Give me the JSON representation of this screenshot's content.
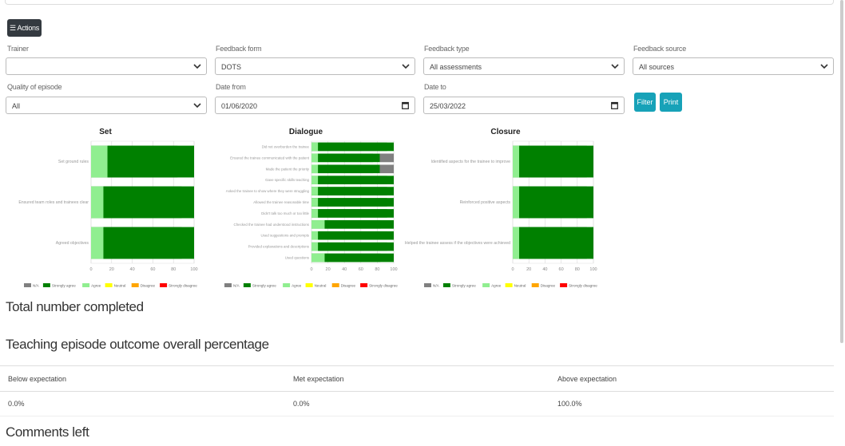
{
  "actions_label": "☰ Actions",
  "filters": {
    "trainer": {
      "label": "Trainer",
      "value": ""
    },
    "feedback_form": {
      "label": "Feedback form",
      "value": "DOTS"
    },
    "feedback_type": {
      "label": "Feedback type",
      "value": "All assessments"
    },
    "feedback_source": {
      "label": "Feedback source",
      "value": "All sources"
    },
    "quality": {
      "label": "Quality of episode",
      "value": "All"
    },
    "date_from": {
      "label": "Date from",
      "value": "01/06/2020"
    },
    "date_to": {
      "label": "Date to",
      "value": "25/03/2022"
    },
    "filter_button": "Filter",
    "print_button": "Print"
  },
  "chart_data": [
    {
      "type": "bar",
      "stacked": true,
      "orientation": "horizontal",
      "title": "Set",
      "categories": [
        "Set ground rules",
        "Ensured team roles and trainees clear",
        "Agreed objectives"
      ],
      "series": [
        {
          "name": "N/A",
          "values": [
            0,
            0,
            0
          ]
        },
        {
          "name": "Strongly agree",
          "values": [
            84,
            88,
            88
          ]
        },
        {
          "name": "Agree",
          "values": [
            16,
            12,
            12
          ]
        },
        {
          "name": "Neutral",
          "values": [
            0,
            0,
            0
          ]
        },
        {
          "name": "Disagree",
          "values": [
            0,
            0,
            0
          ]
        },
        {
          "name": "Strongly disagree",
          "values": [
            0,
            0,
            0
          ]
        }
      ],
      "xlim": [
        0,
        100
      ],
      "xticks": [
        "0",
        "20",
        "40",
        "60",
        "80",
        "100"
      ],
      "grid": true,
      "legend": "bottom"
    },
    {
      "type": "bar",
      "stacked": true,
      "orientation": "horizontal",
      "title": "Dialogue",
      "categories": [
        "Did not overburden the trainee",
        "Ensured the trainee communicated with the patient",
        "Made the patient the priority",
        "Gave specific skills teaching",
        "Asked the trainee to show where they were struggling",
        "Allowed the trainee reasonable time",
        "Didn't talk too much or too little",
        "Checked the trainee had understood instructions",
        "Used suggestions and prompts",
        "Provided explanations and descriptions",
        "Used questions"
      ],
      "series": [
        {
          "name": "N/A",
          "values": [
            0,
            0,
            0,
            0,
            0,
            0,
            0,
            0,
            0,
            0,
            0
          ]
        },
        {
          "name": "Strongly agree",
          "values": [
            92,
            75,
            75,
            92,
            92,
            92,
            92,
            84,
            92,
            92,
            84
          ]
        },
        {
          "name": "Agree",
          "values": [
            8,
            8,
            8,
            8,
            8,
            8,
            8,
            16,
            8,
            8,
            16
          ]
        },
        {
          "name": "Neutral",
          "values": [
            0,
            0,
            0,
            0,
            0,
            0,
            0,
            0,
            0,
            0,
            0
          ]
        },
        {
          "name": "Disagree",
          "values": [
            0,
            0,
            0,
            0,
            0,
            0,
            0,
            0,
            0,
            0,
            0
          ]
        },
        {
          "name": "Strongly disagree",
          "values": [
            0,
            0,
            0,
            0,
            0,
            0,
            0,
            0,
            0,
            0,
            0
          ]
        },
        {
          "name": "N/A (grey)",
          "values": [
            0,
            17,
            17,
            0,
            0,
            0,
            0,
            0,
            0,
            0,
            0
          ]
        }
      ],
      "xlim": [
        0,
        100
      ],
      "xticks": [
        "0",
        "20",
        "40",
        "60",
        "80",
        "100"
      ],
      "grid": true,
      "legend": "bottom"
    },
    {
      "type": "bar",
      "stacked": true,
      "orientation": "horizontal",
      "title": "Closure",
      "categories": [
        "Identified aspects for the trainee to improve",
        "Reinforced positive aspects",
        "Helped the trainee assess if the objectives were achieved"
      ],
      "series": [
        {
          "name": "N/A",
          "values": [
            0,
            0,
            0
          ]
        },
        {
          "name": "Strongly agree",
          "values": [
            92,
            92,
            92
          ]
        },
        {
          "name": "Agree",
          "values": [
            8,
            8,
            8
          ]
        },
        {
          "name": "Neutral",
          "values": [
            0,
            0,
            0
          ]
        },
        {
          "name": "Disagree",
          "values": [
            0,
            0,
            0
          ]
        },
        {
          "name": "Strongly disagree",
          "values": [
            0,
            0,
            0
          ]
        }
      ],
      "xlim": [
        0,
        100
      ],
      "xticks": [
        "0",
        "20",
        "40",
        "60",
        "80",
        "100"
      ],
      "grid": true,
      "legend": "bottom"
    }
  ],
  "legend": [
    {
      "name": "N/A",
      "color": "#808080"
    },
    {
      "name": "Strongly agree",
      "color": "#008000"
    },
    {
      "name": "Agree",
      "color": "#90ee90"
    },
    {
      "name": "Neutral",
      "color": "#ffff00"
    },
    {
      "name": "Disagree",
      "color": "#ffa500"
    },
    {
      "name": "Strongly disagree",
      "color": "#ff0000"
    }
  ],
  "sections": {
    "total": "Total number completed",
    "outcome": "Teaching episode outcome overall percentage",
    "comments": "Comments left"
  },
  "outcome_table": {
    "headers": [
      "Below expectation",
      "Met expectation",
      "Above expectation"
    ],
    "values": [
      "0.0%",
      "0.0%",
      "100.0%"
    ]
  }
}
